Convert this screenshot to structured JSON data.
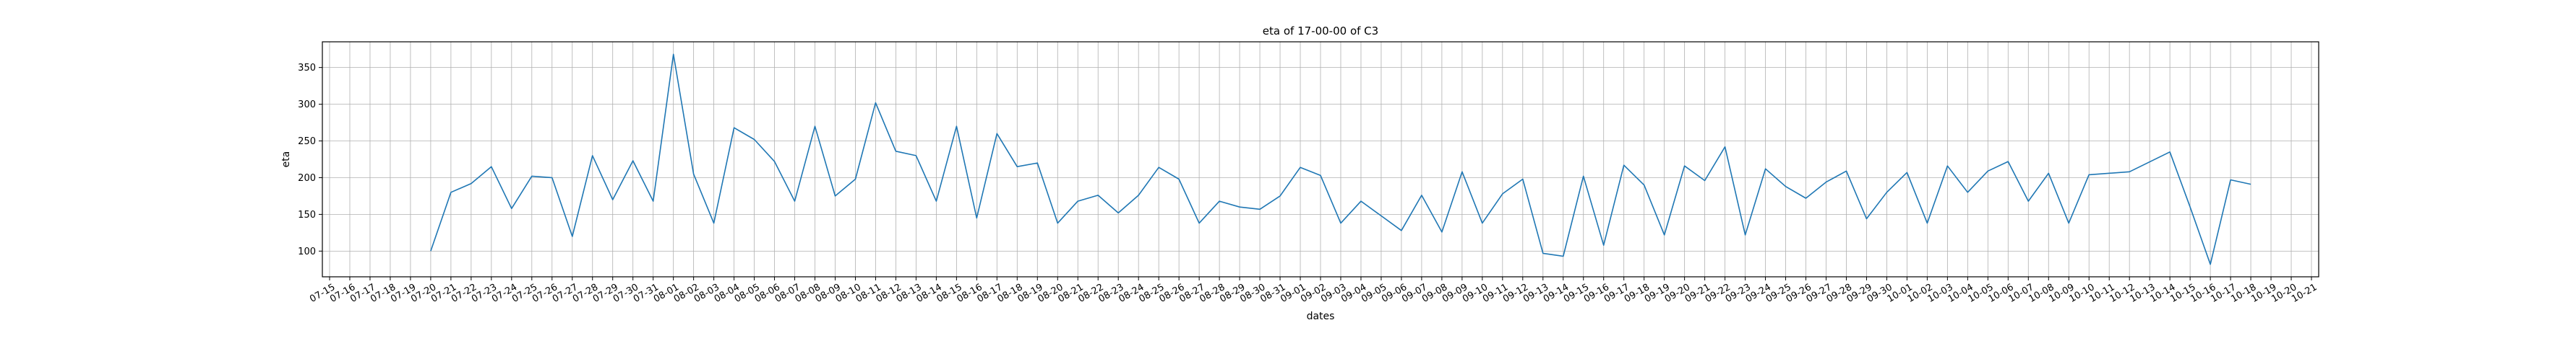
{
  "chart_data": {
    "type": "line",
    "title": "eta of 17-00-00 of C3",
    "xlabel": "dates",
    "ylabel": "eta",
    "grid": true,
    "ylim": [
      65,
      385
    ],
    "yticks": [
      100,
      150,
      200,
      250,
      300,
      350
    ],
    "xlim": [
      "07-15",
      "10-21"
    ],
    "x_tick_labels": [
      "07-15",
      "07-16",
      "07-17",
      "07-18",
      "07-19",
      "07-20",
      "07-21",
      "07-22",
      "07-23",
      "07-24",
      "07-25",
      "07-26",
      "07-27",
      "07-28",
      "07-29",
      "07-30",
      "07-31",
      "08-01",
      "08-02",
      "08-03",
      "08-04",
      "08-05",
      "08-06",
      "08-07",
      "08-08",
      "08-09",
      "08-10",
      "08-11",
      "08-12",
      "08-13",
      "08-14",
      "08-15",
      "08-16",
      "08-17",
      "08-18",
      "08-19",
      "08-20",
      "08-21",
      "08-22",
      "08-23",
      "08-24",
      "08-25",
      "08-26",
      "08-27",
      "08-28",
      "08-29",
      "08-30",
      "08-31",
      "09-01",
      "09-02",
      "09-03",
      "09-04",
      "09-05",
      "09-06",
      "09-07",
      "09-08",
      "09-09",
      "09-10",
      "09-11",
      "09-12",
      "09-13",
      "09-14",
      "09-15",
      "09-16",
      "09-17",
      "09-18",
      "09-19",
      "09-20",
      "09-21",
      "09-22",
      "09-23",
      "09-24",
      "09-25",
      "09-26",
      "09-27",
      "09-28",
      "09-29",
      "09-30",
      "10-01",
      "10-02",
      "10-03",
      "10-04",
      "10-05",
      "10-06",
      "10-07",
      "10-08",
      "10-09",
      "10-10",
      "10-11",
      "10-12",
      "10-13",
      "10-14",
      "10-15",
      "10-16",
      "10-17",
      "10-18",
      "10-19",
      "10-20",
      "10-21"
    ],
    "series": [
      {
        "name": "",
        "color": "#1f77b4",
        "points": [
          [
            "07-20",
            100
          ],
          [
            "07-21",
            180
          ],
          [
            "07-22",
            192
          ],
          [
            "07-23",
            215
          ],
          [
            "07-24",
            158
          ],
          [
            "07-25",
            202
          ],
          [
            "07-26",
            200
          ],
          [
            "07-27",
            120
          ],
          [
            "07-28",
            230
          ],
          [
            "07-29",
            170
          ],
          [
            "07-30",
            223
          ],
          [
            "07-31",
            168
          ],
          [
            "08-01",
            368
          ],
          [
            "08-02",
            205
          ],
          [
            "08-03",
            138
          ],
          [
            "08-04",
            268
          ],
          [
            "08-05",
            252
          ],
          [
            "08-06",
            222
          ],
          [
            "08-07",
            168
          ],
          [
            "08-08",
            270
          ],
          [
            "08-09",
            175
          ],
          [
            "08-10",
            198
          ],
          [
            "08-11",
            302
          ],
          [
            "08-12",
            236
          ],
          [
            "08-13",
            230
          ],
          [
            "08-14",
            168
          ],
          [
            "08-15",
            270
          ],
          [
            "08-16",
            145
          ],
          [
            "08-17",
            260
          ],
          [
            "08-18",
            215
          ],
          [
            "08-19",
            220
          ],
          [
            "08-20",
            138
          ],
          [
            "08-21",
            168
          ],
          [
            "08-22",
            176
          ],
          [
            "08-23",
            152
          ],
          [
            "08-24",
            176
          ],
          [
            "08-25",
            214
          ],
          [
            "08-26",
            198
          ],
          [
            "08-27",
            138
          ],
          [
            "08-28",
            168
          ],
          [
            "08-29",
            160
          ],
          [
            "08-30",
            157
          ],
          [
            "08-31",
            175
          ],
          [
            "09-01",
            214
          ],
          [
            "09-02",
            203
          ],
          [
            "09-03",
            138
          ],
          [
            "09-04",
            168
          ],
          [
            "09-05",
            148
          ],
          [
            "09-06",
            128
          ],
          [
            "09-07",
            176
          ],
          [
            "09-08",
            126
          ],
          [
            "09-09",
            208
          ],
          [
            "09-10",
            138
          ],
          [
            "09-11",
            178
          ],
          [
            "09-12",
            198
          ],
          [
            "09-13",
            97
          ],
          [
            "09-14",
            93
          ],
          [
            "09-15",
            202
          ],
          [
            "09-16",
            108
          ],
          [
            "09-17",
            217
          ],
          [
            "09-18",
            190
          ],
          [
            "09-19",
            122
          ],
          [
            "09-20",
            216
          ],
          [
            "09-21",
            196
          ],
          [
            "09-22",
            242
          ],
          [
            "09-23",
            122
          ],
          [
            "09-24",
            212
          ],
          [
            "09-25",
            188
          ],
          [
            "09-26",
            172
          ],
          [
            "09-27",
            194
          ],
          [
            "09-28",
            209
          ],
          [
            "09-29",
            144
          ],
          [
            "09-30",
            180
          ],
          [
            "10-01",
            207
          ],
          [
            "10-02",
            138
          ],
          [
            "10-03",
            216
          ],
          [
            "10-04",
            180
          ],
          [
            "10-05",
            209
          ],
          [
            "10-06",
            222
          ],
          [
            "10-07",
            168
          ],
          [
            "10-08",
            206
          ],
          [
            "10-09",
            138
          ],
          [
            "10-10",
            204
          ],
          [
            "10-12",
            208
          ],
          [
            "10-14",
            235
          ],
          [
            "10-15",
            160
          ],
          [
            "10-16",
            82
          ],
          [
            "10-17",
            197
          ],
          [
            "10-18",
            191
          ]
        ]
      }
    ]
  }
}
